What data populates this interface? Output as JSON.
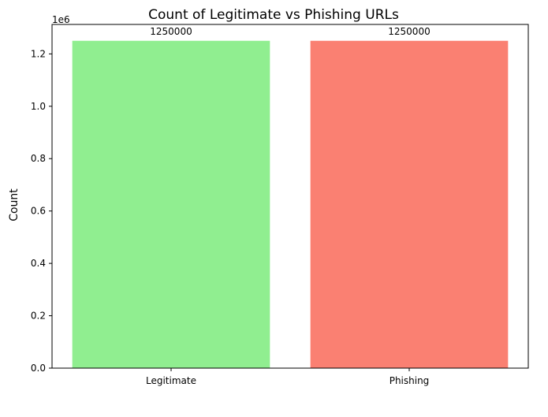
{
  "chart_data": {
    "type": "bar",
    "title": "Count of Legitimate vs Phishing URLs",
    "xlabel": "",
    "ylabel": "Count",
    "categories": [
      "Legitimate",
      "Phishing"
    ],
    "values": [
      1250000,
      1250000
    ],
    "data_labels": [
      "1250000",
      "1250000"
    ],
    "bar_colors": [
      "#90ee90",
      "#fa8072"
    ],
    "ylim": [
      0,
      1312500
    ],
    "y_ticks": [
      0,
      200000,
      400000,
      600000,
      800000,
      1000000,
      1200000
    ],
    "y_tick_labels": [
      "0.0",
      "0.2",
      "0.4",
      "0.6",
      "0.8",
      "1.0",
      "1.2"
    ],
    "y_offset_label": "1e6",
    "grid": false,
    "legend": "none"
  }
}
